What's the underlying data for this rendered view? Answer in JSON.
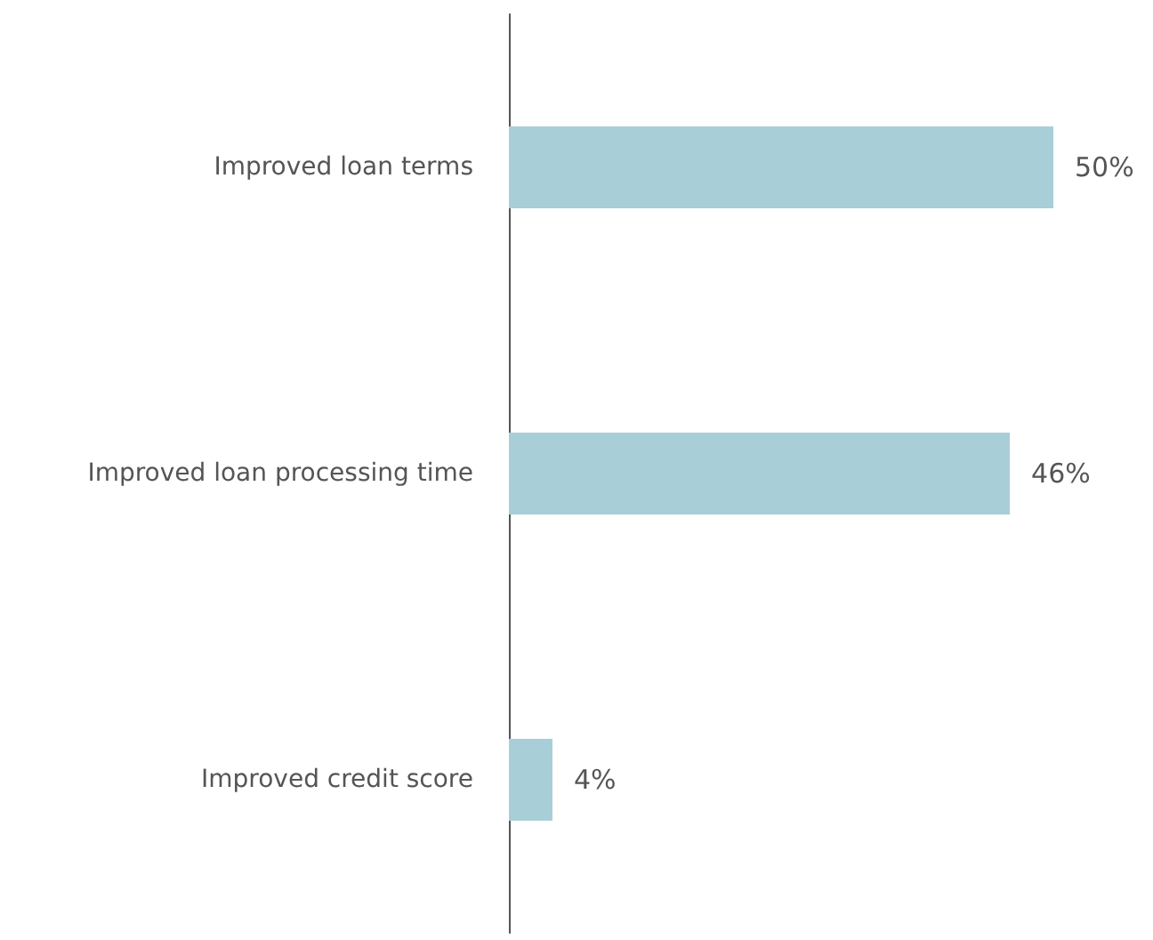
{
  "chart_data": {
    "type": "bar",
    "orientation": "horizontal",
    "categories": [
      "Improved loan terms",
      "Improved loan processing time",
      "Improved credit score"
    ],
    "values": [
      50,
      46,
      4
    ],
    "value_labels": [
      "50%",
      "46%",
      "4%"
    ],
    "color": "#a8ced8"
  }
}
